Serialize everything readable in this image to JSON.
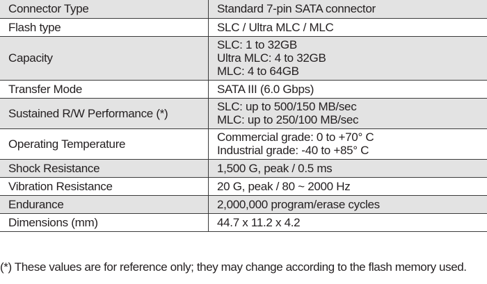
{
  "specs": {
    "rows": [
      {
        "label": "Connector Type",
        "lines": [
          "Standard 7-pin SATA connector"
        ]
      },
      {
        "label": "Flash type",
        "lines": [
          "SLC / Ultra MLC / MLC"
        ]
      },
      {
        "label": "Capacity",
        "lines": [
          "SLC: 1 to 32GB",
          "Ultra MLC: 4 to 32GB",
          "MLC: 4 to 64GB"
        ]
      },
      {
        "label": "Transfer Mode",
        "lines": [
          "SATA III (6.0 Gbps)"
        ]
      },
      {
        "label": "Sustained R/W Performance (*)",
        "lines": [
          "SLC: up to 500/150 MB/sec",
          "MLC: up to 250/100 MB/sec"
        ]
      },
      {
        "label": "Operating Temperature",
        "lines": [
          "Commercial grade: 0 to +70° C",
          "Industrial grade: -40 to +85° C"
        ]
      },
      {
        "label": "Shock Resistance",
        "lines": [
          "1,500 G, peak / 0.5 ms"
        ]
      },
      {
        "label": "Vibration Resistance",
        "lines": [
          "20 G, peak / 80 ~ 2000 Hz"
        ]
      },
      {
        "label": "Endurance",
        "lines": [
          "2,000,000 program/erase cycles"
        ]
      },
      {
        "label": "Dimensions (mm)",
        "lines": [
          "44.7 x 11.2 x 4.2"
        ]
      }
    ]
  },
  "footnote": "(*) These values are for reference only; they may change according to the flash memory used."
}
